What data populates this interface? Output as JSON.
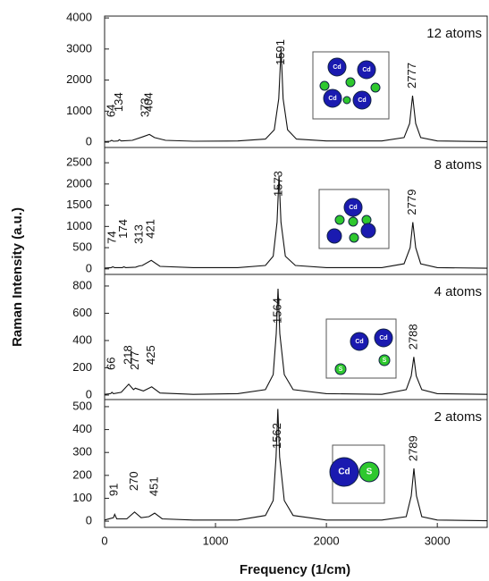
{
  "chart_data": [
    {
      "type": "line",
      "title": "12 atoms",
      "ylabel": "Raman Intensity (a.u.)",
      "xlim": [
        0,
        3450
      ],
      "ylim": [
        -170,
        4060
      ],
      "yticks": [
        0,
        1000,
        2000,
        3000,
        4000
      ],
      "x": [
        0,
        50,
        64,
        80,
        120,
        134,
        150,
        250,
        350,
        404,
        450,
        550,
        800,
        1200,
        1450,
        1530,
        1570,
        1591,
        1610,
        1650,
        1730,
        2000,
        2500,
        2700,
        2750,
        2777,
        2805,
        2850,
        3000,
        3450
      ],
      "y": [
        20,
        30,
        60,
        30,
        40,
        80,
        40,
        60,
        180,
        250,
        150,
        60,
        30,
        40,
        100,
        400,
        1400,
        3000,
        1400,
        400,
        100,
        40,
        40,
        150,
        600,
        1500,
        600,
        150,
        40,
        20
      ],
      "peaks": [
        64,
        134,
        373,
        404,
        1591,
        2777
      ],
      "atoms": [
        "Cd",
        "Cd",
        "Cd",
        "Cd"
      ]
    },
    {
      "type": "line",
      "title": "8 atoms",
      "xlim": [
        0,
        3450
      ],
      "ylim": [
        -130,
        2860
      ],
      "yticks": [
        0,
        500,
        1000,
        1500,
        2000,
        2500
      ],
      "x": [
        0,
        60,
        74,
        90,
        160,
        174,
        190,
        280,
        313,
        340,
        421,
        500,
        800,
        1200,
        1450,
        1520,
        1555,
        1573,
        1590,
        1630,
        1720,
        2000,
        2500,
        2700,
        2755,
        2779,
        2805,
        2850,
        3000,
        3450
      ],
      "y": [
        20,
        30,
        50,
        30,
        30,
        50,
        30,
        40,
        70,
        80,
        200,
        60,
        30,
        30,
        80,
        300,
        1100,
        2200,
        1100,
        300,
        80,
        30,
        30,
        120,
        500,
        1100,
        500,
        120,
        30,
        15
      ],
      "peaks": [
        74,
        174,
        313,
        421,
        1573,
        2779
      ],
      "atoms": [
        "Cd"
      ]
    },
    {
      "type": "line",
      "title": "4 atoms",
      "xlim": [
        0,
        3450
      ],
      "ylim": [
        -33,
        885
      ],
      "yticks": [
        0,
        200,
        400,
        600,
        800
      ],
      "x": [
        0,
        55,
        66,
        80,
        150,
        218,
        260,
        277,
        350,
        425,
        500,
        800,
        1200,
        1450,
        1520,
        1548,
        1564,
        1580,
        1620,
        1700,
        2000,
        2500,
        2720,
        2765,
        2788,
        2810,
        2860,
        3000,
        3450
      ],
      "y": [
        5,
        10,
        20,
        10,
        20,
        80,
        40,
        50,
        30,
        60,
        15,
        5,
        10,
        40,
        150,
        450,
        780,
        450,
        150,
        40,
        10,
        5,
        40,
        140,
        280,
        140,
        40,
        10,
        5
      ],
      "peaks": [
        66,
        218,
        277,
        425,
        1564,
        2788
      ],
      "atoms": [
        "Cd",
        "Cd",
        "S",
        "S"
      ]
    },
    {
      "type": "line",
      "title": "2 atoms",
      "xlabel": "Frequency (1/cm)",
      "xlim": [
        0,
        3450
      ],
      "ylim": [
        -27,
        531
      ],
      "yticks": [
        0,
        100,
        200,
        300,
        400,
        500
      ],
      "xticks": [
        0,
        1000,
        2000,
        3000
      ],
      "x": [
        0,
        80,
        91,
        110,
        200,
        270,
        330,
        400,
        451,
        520,
        800,
        1200,
        1450,
        1520,
        1546,
        1562,
        1578,
        1620,
        1700,
        2000,
        2500,
        2720,
        2765,
        2789,
        2812,
        2860,
        3000,
        3450
      ],
      "y": [
        5,
        15,
        30,
        10,
        10,
        40,
        15,
        20,
        35,
        10,
        5,
        5,
        25,
        90,
        280,
        490,
        280,
        90,
        25,
        5,
        5,
        20,
        110,
        230,
        110,
        20,
        5,
        2
      ],
      "peaks": [
        91,
        270,
        451,
        1562,
        2789
      ],
      "atoms": [
        "Cd",
        "S"
      ]
    }
  ]
}
